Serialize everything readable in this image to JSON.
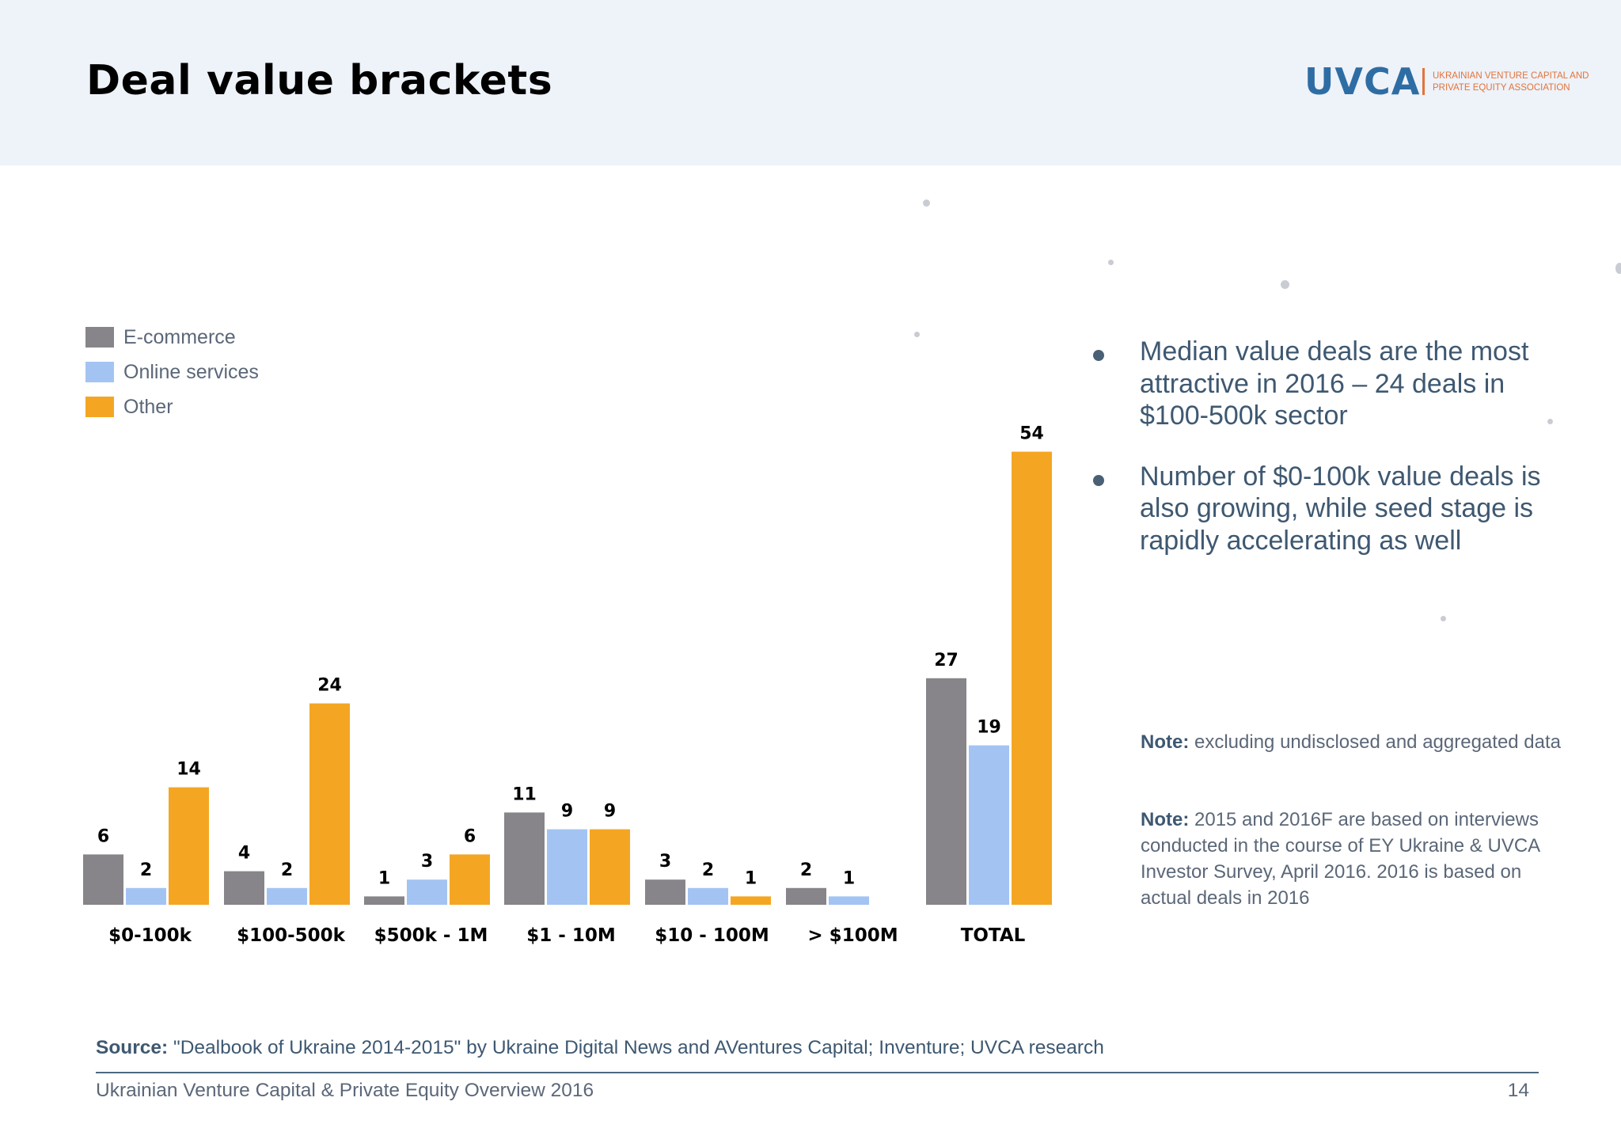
{
  "header": {
    "title": "Deal value brackets",
    "logo": {
      "mark": "UVCA",
      "line1": "Ukrainian Venture Capital and",
      "line2": "Private Equity Association"
    }
  },
  "chart_data": {
    "type": "bar",
    "title": "",
    "xlabel": "",
    "ylabel": "",
    "ylim": [
      0,
      54
    ],
    "grid": false,
    "legend_position": "top-left",
    "categories": [
      "$0-100k",
      "$100-500k",
      "$500k - 1M",
      "$1 - 10M",
      "$10 - 100M",
      "> $100M",
      "TOTAL"
    ],
    "series": [
      {
        "name": "E-commerce",
        "color": "#878589",
        "values": [
          6,
          4,
          1,
          11,
          3,
          2,
          27
        ]
      },
      {
        "name": "Online services",
        "color": "#a3c4f3",
        "values": [
          2,
          2,
          3,
          9,
          2,
          1,
          19
        ]
      },
      {
        "name": "Other",
        "color": "#f4a623",
        "values": [
          14,
          24,
          6,
          9,
          1,
          0,
          54
        ]
      }
    ]
  },
  "bullets": [
    "Median value deals are the most attractive in 2016 – 24 deals in $100-500k sector",
    "Number of $0-100k value deals is also growing, while seed stage is rapidly accelerating as well"
  ],
  "notes": [
    {
      "label": "Note:",
      "text": " excluding undisclosed and aggregated data"
    },
    {
      "label": "Note:",
      "text": " 2015 and 2016F are based on interviews conducted in the course of EY Ukraine & UVCA Investor Survey, April 2016. 2016 is based on actual deals in 2016"
    }
  ],
  "source": {
    "label": "Source:",
    "text": " \"Dealbook of Ukraine 2014-2015\" by Ukraine Digital News and AVentures Capital; Inventure; UVCA research"
  },
  "footer": {
    "left": "Ukrainian Venture Capital & Private Equity Overview 2016",
    "page": "14"
  }
}
